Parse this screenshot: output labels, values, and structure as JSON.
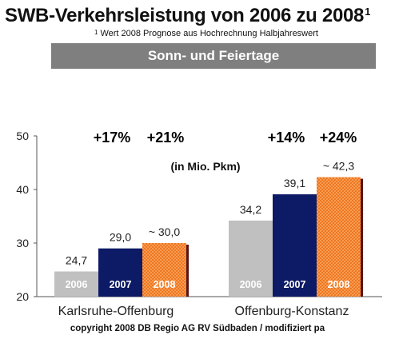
{
  "header": {
    "title": "SWB-Verkehrsleistung von 2006 zu 2008",
    "title_sup": "1",
    "footnote_marker": "1",
    "footnote": "Wert 2008 Prognose aus Hochrechnung Halbjahreswert",
    "banner": "Sonn- und Feiertage"
  },
  "footer": {
    "copyright": "copyright 2008 DB Regio AG RV Südbaden / modifiziert pa"
  },
  "chart_data": {
    "type": "bar",
    "unit_label": "(in Mio. Pkm)",
    "categories": [
      "Karlsruhe-Offenburg",
      "Offenburg-Konstanz"
    ],
    "series": [
      {
        "name": "2006",
        "values": [
          24.7,
          34.2
        ],
        "labels": [
          "24,7",
          "34,2"
        ],
        "color": "#c0c0c0"
      },
      {
        "name": "2007",
        "values": [
          29.0,
          39.1
        ],
        "labels": [
          "29,0",
          "39,1"
        ],
        "color": "#0d1a66"
      },
      {
        "name": "2008",
        "values": [
          30.0,
          42.3
        ],
        "labels": [
          "~ 30,0",
          "~ 42,3"
        ],
        "color": "#f07820"
      }
    ],
    "growth_labels": [
      [
        "+17%",
        "+21%"
      ],
      [
        "+14%",
        "+24%"
      ]
    ],
    "ylim": [
      20,
      50
    ],
    "yticks": [
      "20",
      "30",
      "40",
      "50"
    ],
    "grid": false,
    "legend": "none"
  }
}
